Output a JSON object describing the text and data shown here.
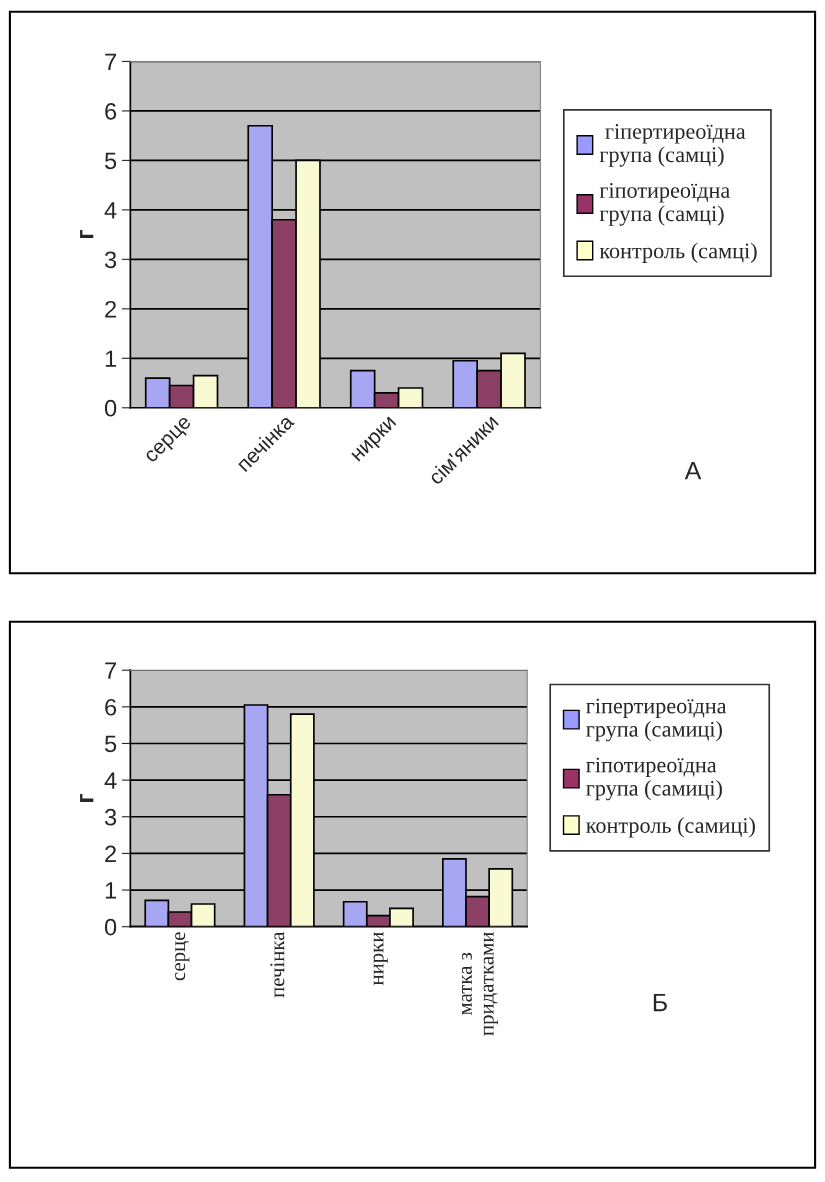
{
  "chart_data": [
    {
      "type": "bar",
      "ylabel": "г",
      "categories": [
        "серце",
        "печінка",
        "нирки",
        "сім'яники"
      ],
      "series": [
        {
          "name": " гіпертиреоїдна\nгрупа (самці)",
          "color": "#9999ff",
          "values": [
            0.6,
            5.7,
            0.75,
            0.95
          ]
        },
        {
          "name": "гіпотиреоїдна\nгрупа (самці)",
          "color": "#993366",
          "values": [
            0.45,
            3.8,
            0.3,
            0.75
          ]
        },
        {
          "name": "контроль (самці)",
          "color": "#ffffcc",
          "values": [
            0.65,
            5.0,
            0.4,
            1.1
          ]
        }
      ],
      "ylim": [
        0,
        7
      ],
      "yticks": [
        0,
        1,
        2,
        3,
        4,
        5,
        6,
        7
      ],
      "grid": "y",
      "legend": "right",
      "annotations": [
        "А"
      ]
    },
    {
      "type": "bar",
      "ylabel": "г",
      "categories": [
        "серце",
        "печінка",
        "нирки",
        "матка з\nпридатками"
      ],
      "series": [
        {
          "name": "гіпертиреоїдна\nгрупа (самиці)",
          "color": "#9999ff",
          "values": [
            0.72,
            6.05,
            0.68,
            1.85
          ]
        },
        {
          "name": "гіпотиреоїдна\nгрупа (самиці)",
          "color": "#993366",
          "values": [
            0.4,
            3.6,
            0.3,
            0.82
          ]
        },
        {
          "name": "контроль (самиці)",
          "color": "#ffffcc",
          "values": [
            0.62,
            5.8,
            0.5,
            1.58
          ]
        }
      ],
      "ylim": [
        0,
        7
      ],
      "yticks": [
        0,
        1,
        2,
        3,
        4,
        5,
        6,
        7
      ],
      "grid": "y",
      "legend": "right",
      "annotations": [
        "Б"
      ]
    }
  ]
}
